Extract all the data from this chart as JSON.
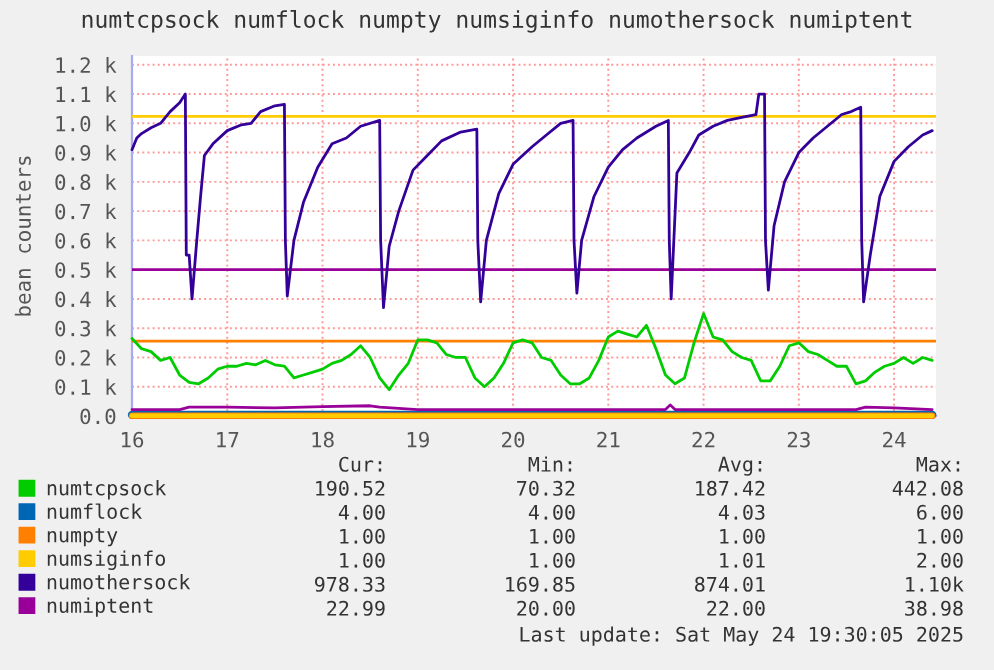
{
  "chart_data": {
    "type": "line",
    "title": "numtcpsock numflock numpty numsiginfo numothersock numiptent",
    "ylabel": "bean counters",
    "xlim": [
      16.0,
      24.44
    ],
    "xticks": [
      16,
      17,
      18,
      19,
      20,
      21,
      22,
      23,
      24
    ],
    "ylim": [
      0,
      1230
    ],
    "yticks": [
      {
        "value": 0,
        "label": "0.0"
      },
      {
        "value": 100,
        "label": "0.1 k"
      },
      {
        "value": 200,
        "label": "0.2 k"
      },
      {
        "value": 300,
        "label": "0.3 k"
      },
      {
        "value": 400,
        "label": "0.4 k"
      },
      {
        "value": 500,
        "label": "0.5 k"
      },
      {
        "value": 600,
        "label": "0.6 k"
      },
      {
        "value": 700,
        "label": "0.7 k"
      },
      {
        "value": 800,
        "label": "0.8 k"
      },
      {
        "value": 900,
        "label": "0.9 k"
      },
      {
        "value": 1000,
        "label": "1.0 k"
      },
      {
        "value": 1100,
        "label": "1.1 k"
      },
      {
        "value": 1200,
        "label": "1.2 k"
      }
    ],
    "grid": true,
    "legend": "bottom",
    "series": [
      {
        "name": "numtcpsock",
        "color": "#00cc00",
        "x": [
          16.0,
          16.1,
          16.2,
          16.3,
          16.4,
          16.5,
          16.6,
          16.7,
          16.8,
          16.9,
          17.0,
          17.1,
          17.2,
          17.3,
          17.4,
          17.5,
          17.6,
          17.7,
          17.8,
          17.9,
          18.0,
          18.1,
          18.2,
          18.3,
          18.4,
          18.5,
          18.6,
          18.7,
          18.8,
          18.9,
          19.0,
          19.1,
          19.2,
          19.3,
          19.4,
          19.5,
          19.6,
          19.7,
          19.8,
          19.9,
          20.0,
          20.1,
          20.2,
          20.3,
          20.4,
          20.5,
          20.6,
          20.7,
          20.8,
          20.9,
          21.0,
          21.1,
          21.2,
          21.3,
          21.4,
          21.5,
          21.6,
          21.7,
          21.8,
          21.9,
          22.0,
          22.1,
          22.2,
          22.3,
          22.4,
          22.5,
          22.6,
          22.7,
          22.8,
          22.9,
          23.0,
          23.1,
          23.2,
          23.3,
          23.4,
          23.5,
          23.6,
          23.7,
          23.8,
          23.9,
          24.0,
          24.1,
          24.2,
          24.3,
          24.4
        ],
        "values": [
          265,
          230,
          220,
          190,
          200,
          140,
          115,
          110,
          130,
          160,
          170,
          170,
          180,
          175,
          190,
          175,
          170,
          130,
          140,
          150,
          160,
          180,
          190,
          210,
          240,
          200,
          130,
          90,
          140,
          180,
          260,
          260,
          250,
          210,
          200,
          200,
          130,
          100,
          130,
          180,
          250,
          260,
          250,
          200,
          190,
          140,
          110,
          110,
          130,
          190,
          270,
          290,
          280,
          270,
          310,
          230,
          140,
          110,
          130,
          250,
          350,
          270,
          260,
          220,
          200,
          190,
          120,
          120,
          170,
          240,
          250,
          220,
          210,
          190,
          170,
          170,
          110,
          120,
          150,
          170,
          180,
          200,
          180,
          200,
          190
        ]
      },
      {
        "name": "numflock",
        "color": "#0066b3",
        "x": [
          16.0,
          24.4
        ],
        "values": [
          4,
          4
        ]
      },
      {
        "name": "numpty",
        "color": "#ff8000",
        "x": [
          16.0,
          24.4
        ],
        "values": [
          1,
          1
        ]
      },
      {
        "name": "numsiginfo",
        "color": "#ffcc00",
        "x": [
          16.0,
          24.4
        ],
        "values": [
          1,
          1
        ]
      },
      {
        "name": "numothersock",
        "color": "#330099",
        "x": [
          16.0,
          16.05,
          16.1,
          16.2,
          16.3,
          16.4,
          16.5,
          16.56,
          16.57,
          16.6,
          16.63,
          16.68,
          16.72,
          16.76,
          16.85,
          17.0,
          17.15,
          17.25,
          17.35,
          17.5,
          17.6,
          17.61,
          17.63,
          17.7,
          17.8,
          17.95,
          18.1,
          18.25,
          18.4,
          18.6,
          18.61,
          18.64,
          18.7,
          18.8,
          18.95,
          19.1,
          19.25,
          19.45,
          19.62,
          19.63,
          19.66,
          19.72,
          19.85,
          20.0,
          20.2,
          20.35,
          20.5,
          20.63,
          20.64,
          20.67,
          20.72,
          20.85,
          21.0,
          21.15,
          21.3,
          21.5,
          21.63,
          21.64,
          21.66,
          21.72,
          21.85,
          21.95,
          22.1,
          22.25,
          22.4,
          22.55,
          22.58,
          22.64,
          22.65,
          22.68,
          22.74,
          22.85,
          23.0,
          23.15,
          23.3,
          23.45,
          23.55,
          23.65,
          23.66,
          23.68,
          23.75,
          23.85,
          24.0,
          24.15,
          24.3,
          24.4
        ],
        "values": [
          910,
          950,
          965,
          985,
          1000,
          1040,
          1070,
          1100,
          550,
          550,
          400,
          600,
          750,
          890,
          930,
          975,
          995,
          1000,
          1040,
          1060,
          1065,
          600,
          410,
          600,
          730,
          850,
          930,
          950,
          990,
          1010,
          600,
          370,
          580,
          700,
          840,
          890,
          940,
          970,
          980,
          600,
          390,
          600,
          760,
          860,
          920,
          960,
          1000,
          1010,
          600,
          420,
          600,
          750,
          850,
          910,
          950,
          990,
          1010,
          600,
          400,
          830,
          900,
          960,
          990,
          1010,
          1020,
          1030,
          1100,
          1100,
          600,
          430,
          650,
          800,
          900,
          950,
          990,
          1030,
          1040,
          1055,
          600,
          390,
          550,
          750,
          870,
          920,
          960,
          975
        ]
      },
      {
        "name": "numiptent",
        "color": "#990099",
        "x": [
          16.0,
          16.5,
          16.6,
          17.0,
          17.5,
          18.0,
          18.5,
          18.6,
          19.0,
          21.6,
          21.65,
          21.7,
          23.6,
          23.7,
          24.0,
          24.4
        ],
        "values": [
          22,
          22,
          30,
          30,
          28,
          32,
          35,
          30,
          22,
          22,
          38,
          22,
          22,
          30,
          28,
          22
        ]
      }
    ],
    "ref_lines": [
      {
        "axis": "y",
        "value": 1024,
        "color": "#ffcc00"
      },
      {
        "axis": "y",
        "value": 500,
        "color": "#990099"
      },
      {
        "axis": "y",
        "value": 256,
        "color": "#ff8000"
      }
    ],
    "annotations": [
      "Cur:",
      "Min:",
      "Avg:",
      "Max:",
      "190.52",
      "70.32",
      "187.42",
      "442.08",
      "4.00",
      "4.00",
      "4.03",
      "6.00",
      "1.00",
      "1.00",
      "1.00",
      "1.00",
      "1.00",
      "1.00",
      "1.01",
      "2.00",
      "978.33",
      "169.85",
      "874.01",
      "1.10k",
      "22.99",
      "20.00",
      "22.00",
      "38.98",
      "Last update: Sat May 24 19:30:05 2025"
    ]
  }
}
